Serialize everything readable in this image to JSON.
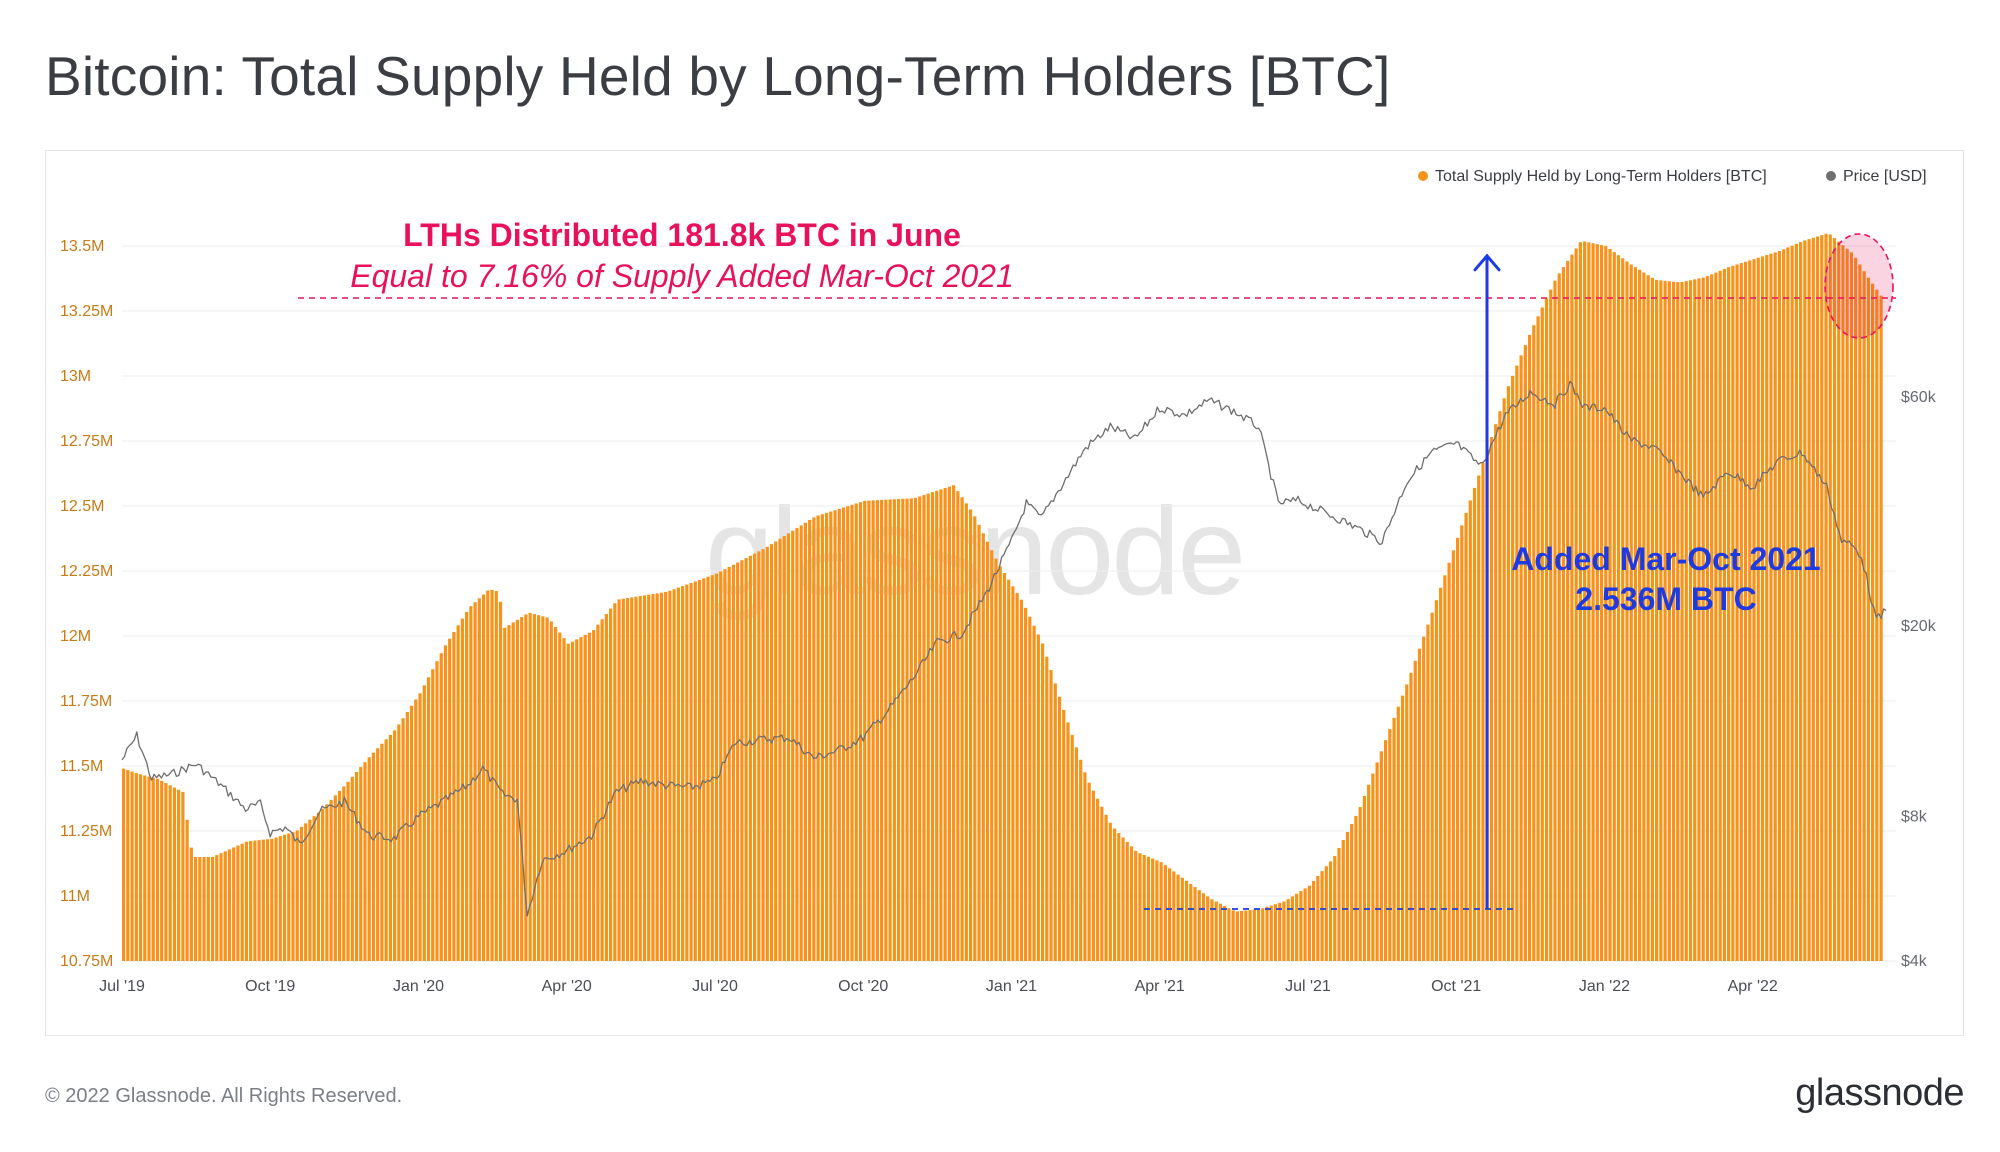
{
  "header": {
    "title": "Bitcoin: Total Supply Held by Long-Term Holders [BTC]"
  },
  "footer": {
    "copyright": "© 2022 Glassnode. All Rights Reserved.",
    "brand": "glassnode"
  },
  "colors": {
    "supply": "#f7931a",
    "price": "#6e6e6e",
    "annotation_pink": "#e8125c",
    "annotation_blue": "#1d3be0"
  },
  "chart_data": {
    "type": "bar",
    "title": "Bitcoin: Total Supply Held by Long-Term Holders [BTC]",
    "watermark": "glassnode",
    "x_ticks": [
      "Jul '19",
      "Oct '19",
      "Jan '20",
      "Apr '20",
      "Jul '20",
      "Oct '20",
      "Jan '21",
      "Apr '21",
      "Jul '21",
      "Oct '21",
      "Jan '22",
      "Apr '22"
    ],
    "y_left": {
      "ticks": [
        "10.75M",
        "11M",
        "11.25M",
        "11.5M",
        "11.75M",
        "12M",
        "12.25M",
        "12.5M",
        "12.75M",
        "13M",
        "13.25M",
        "13.5M"
      ],
      "range": [
        10.75,
        13.75
      ],
      "unit": "M BTC"
    },
    "y_right": {
      "scale": "log",
      "ticks": [
        "$4k",
        "$8k",
        "$20k",
        "$60k"
      ],
      "tick_values": [
        4000,
        8000,
        20000,
        60000
      ],
      "range": [
        4000,
        62000
      ]
    },
    "legend": [
      {
        "label": "Total Supply Held by Long-Term Holders [BTC]",
        "color": "#f7931a"
      },
      {
        "label": "Price [USD]",
        "color": "#6e6e6e"
      }
    ],
    "legend_position": "top-right",
    "series": [
      {
        "name": "Total Supply Held by Long-Term Holders [BTC]",
        "type": "bar",
        "unit": "M BTC",
        "points": [
          [
            0,
            11.49
          ],
          [
            0.3,
            11.47
          ],
          [
            0.7,
            11.45
          ],
          [
            1.2,
            11.4
          ],
          [
            1.4,
            11.15
          ],
          [
            1.8,
            11.15
          ],
          [
            2.5,
            11.21
          ],
          [
            3.0,
            11.22
          ],
          [
            3.5,
            11.25
          ],
          [
            4.0,
            11.33
          ],
          [
            4.5,
            11.43
          ],
          [
            5.0,
            11.54
          ],
          [
            5.5,
            11.64
          ],
          [
            6.0,
            11.78
          ],
          [
            6.5,
            11.96
          ],
          [
            7.0,
            12.11
          ],
          [
            7.4,
            12.18
          ],
          [
            7.6,
            12.17
          ],
          [
            7.7,
            12.03
          ],
          [
            8.2,
            12.09
          ],
          [
            8.6,
            12.07
          ],
          [
            9.0,
            11.97
          ],
          [
            9.5,
            12.02
          ],
          [
            10.0,
            12.14
          ],
          [
            11.0,
            12.17
          ],
          [
            12.0,
            12.24
          ],
          [
            13.0,
            12.34
          ],
          [
            14.0,
            12.46
          ],
          [
            15.0,
            12.52
          ],
          [
            16.0,
            12.53
          ],
          [
            16.8,
            12.58
          ],
          [
            17.2,
            12.47
          ],
          [
            17.7,
            12.28
          ],
          [
            18.2,
            12.13
          ],
          [
            18.6,
            11.97
          ],
          [
            19.0,
            11.73
          ],
          [
            19.5,
            11.45
          ],
          [
            20.0,
            11.27
          ],
          [
            20.5,
            11.17
          ],
          [
            21.0,
            11.13
          ],
          [
            21.5,
            11.06
          ],
          [
            22.0,
            10.99
          ],
          [
            22.5,
            10.94
          ],
          [
            23.0,
            10.95
          ],
          [
            23.5,
            10.98
          ],
          [
            24.0,
            11.04
          ],
          [
            24.5,
            11.15
          ],
          [
            25.0,
            11.33
          ],
          [
            25.5,
            11.58
          ],
          [
            26.0,
            11.83
          ],
          [
            26.5,
            12.1
          ],
          [
            27.0,
            12.38
          ],
          [
            27.5,
            12.66
          ],
          [
            28.0,
            12.95
          ],
          [
            28.5,
            13.18
          ],
          [
            29.0,
            13.38
          ],
          [
            29.5,
            13.52
          ],
          [
            30.0,
            13.5
          ],
          [
            30.5,
            13.43
          ],
          [
            31.0,
            13.37
          ],
          [
            31.5,
            13.36
          ],
          [
            32.0,
            13.38
          ],
          [
            32.5,
            13.42
          ],
          [
            33.0,
            13.45
          ],
          [
            33.5,
            13.48
          ],
          [
            34.0,
            13.52
          ],
          [
            34.5,
            13.55
          ],
          [
            35.0,
            13.47
          ],
          [
            35.3,
            13.38
          ],
          [
            35.6,
            13.3
          ]
        ]
      },
      {
        "name": "Price [USD]",
        "type": "line",
        "unit": "USD",
        "points": [
          [
            0,
            10500
          ],
          [
            0.3,
            11800
          ],
          [
            0.6,
            9600
          ],
          [
            1.0,
            9800
          ],
          [
            1.5,
            10300
          ],
          [
            2.0,
            9300
          ],
          [
            2.5,
            8300
          ],
          [
            2.8,
            8500
          ],
          [
            3.0,
            7400
          ],
          [
            3.3,
            7600
          ],
          [
            3.6,
            7000
          ],
          [
            4.0,
            8200
          ],
          [
            4.5,
            8600
          ],
          [
            5.0,
            7300
          ],
          [
            5.5,
            7200
          ],
          [
            6.0,
            8000
          ],
          [
            6.5,
            8600
          ],
          [
            7.0,
            9300
          ],
          [
            7.3,
            10100
          ],
          [
            7.7,
            8900
          ],
          [
            8.0,
            8700
          ],
          [
            8.2,
            5000
          ],
          [
            8.5,
            6500
          ],
          [
            9.0,
            6800
          ],
          [
            9.5,
            7300
          ],
          [
            10.0,
            9000
          ],
          [
            10.5,
            9500
          ],
          [
            11.0,
            9300
          ],
          [
            11.5,
            9200
          ],
          [
            12.0,
            9500
          ],
          [
            12.4,
            11400
          ],
          [
            13.0,
            11600
          ],
          [
            13.5,
            11700
          ],
          [
            14.0,
            10600
          ],
          [
            14.5,
            11000
          ],
          [
            15.0,
            11700
          ],
          [
            15.5,
            13300
          ],
          [
            16.0,
            15500
          ],
          [
            16.5,
            18500
          ],
          [
            17.0,
            19300
          ],
          [
            17.5,
            23500
          ],
          [
            18.0,
            30000
          ],
          [
            18.3,
            36000
          ],
          [
            18.6,
            33500
          ],
          [
            19.0,
            39000
          ],
          [
            19.5,
            47000
          ],
          [
            20.0,
            52000
          ],
          [
            20.5,
            49000
          ],
          [
            21.0,
            57000
          ],
          [
            21.5,
            55000
          ],
          [
            22.0,
            59000
          ],
          [
            22.5,
            56000
          ],
          [
            23.0,
            52000
          ],
          [
            23.4,
            36000
          ],
          [
            23.8,
            36500
          ],
          [
            24.2,
            35000
          ],
          [
            24.6,
            33500
          ],
          [
            25.0,
            32000
          ],
          [
            25.5,
            30000
          ],
          [
            26.0,
            40000
          ],
          [
            26.5,
            46000
          ],
          [
            27.0,
            48000
          ],
          [
            27.5,
            43000
          ],
          [
            28.0,
            55000
          ],
          [
            28.5,
            61500
          ],
          [
            29.0,
            58000
          ],
          [
            29.3,
            64000
          ],
          [
            29.6,
            57000
          ],
          [
            30.0,
            57000
          ],
          [
            30.5,
            49000
          ],
          [
            31.0,
            47000
          ],
          [
            31.5,
            42000
          ],
          [
            32.0,
            37000
          ],
          [
            32.5,
            42000
          ],
          [
            33.0,
            39000
          ],
          [
            33.5,
            44000
          ],
          [
            34.0,
            46000
          ],
          [
            34.5,
            39000
          ],
          [
            34.8,
            30000
          ],
          [
            35.0,
            29500
          ],
          [
            35.2,
            28000
          ],
          [
            35.5,
            20500
          ],
          [
            35.7,
            21500
          ]
        ]
      }
    ],
    "annotations": [
      {
        "id": "lth_distribution",
        "line1": "LTHs Distributed 181.8k BTC in June",
        "line2": "Equal to 7.16% of Supply Added Mar-Oct 2021",
        "level_M": 13.3
      },
      {
        "id": "mar_oct_added",
        "line1": "Added Mar-Oct 2021",
        "line2": "2.536M BTC",
        "from_M": 10.95,
        "to_M": 13.47
      }
    ]
  }
}
